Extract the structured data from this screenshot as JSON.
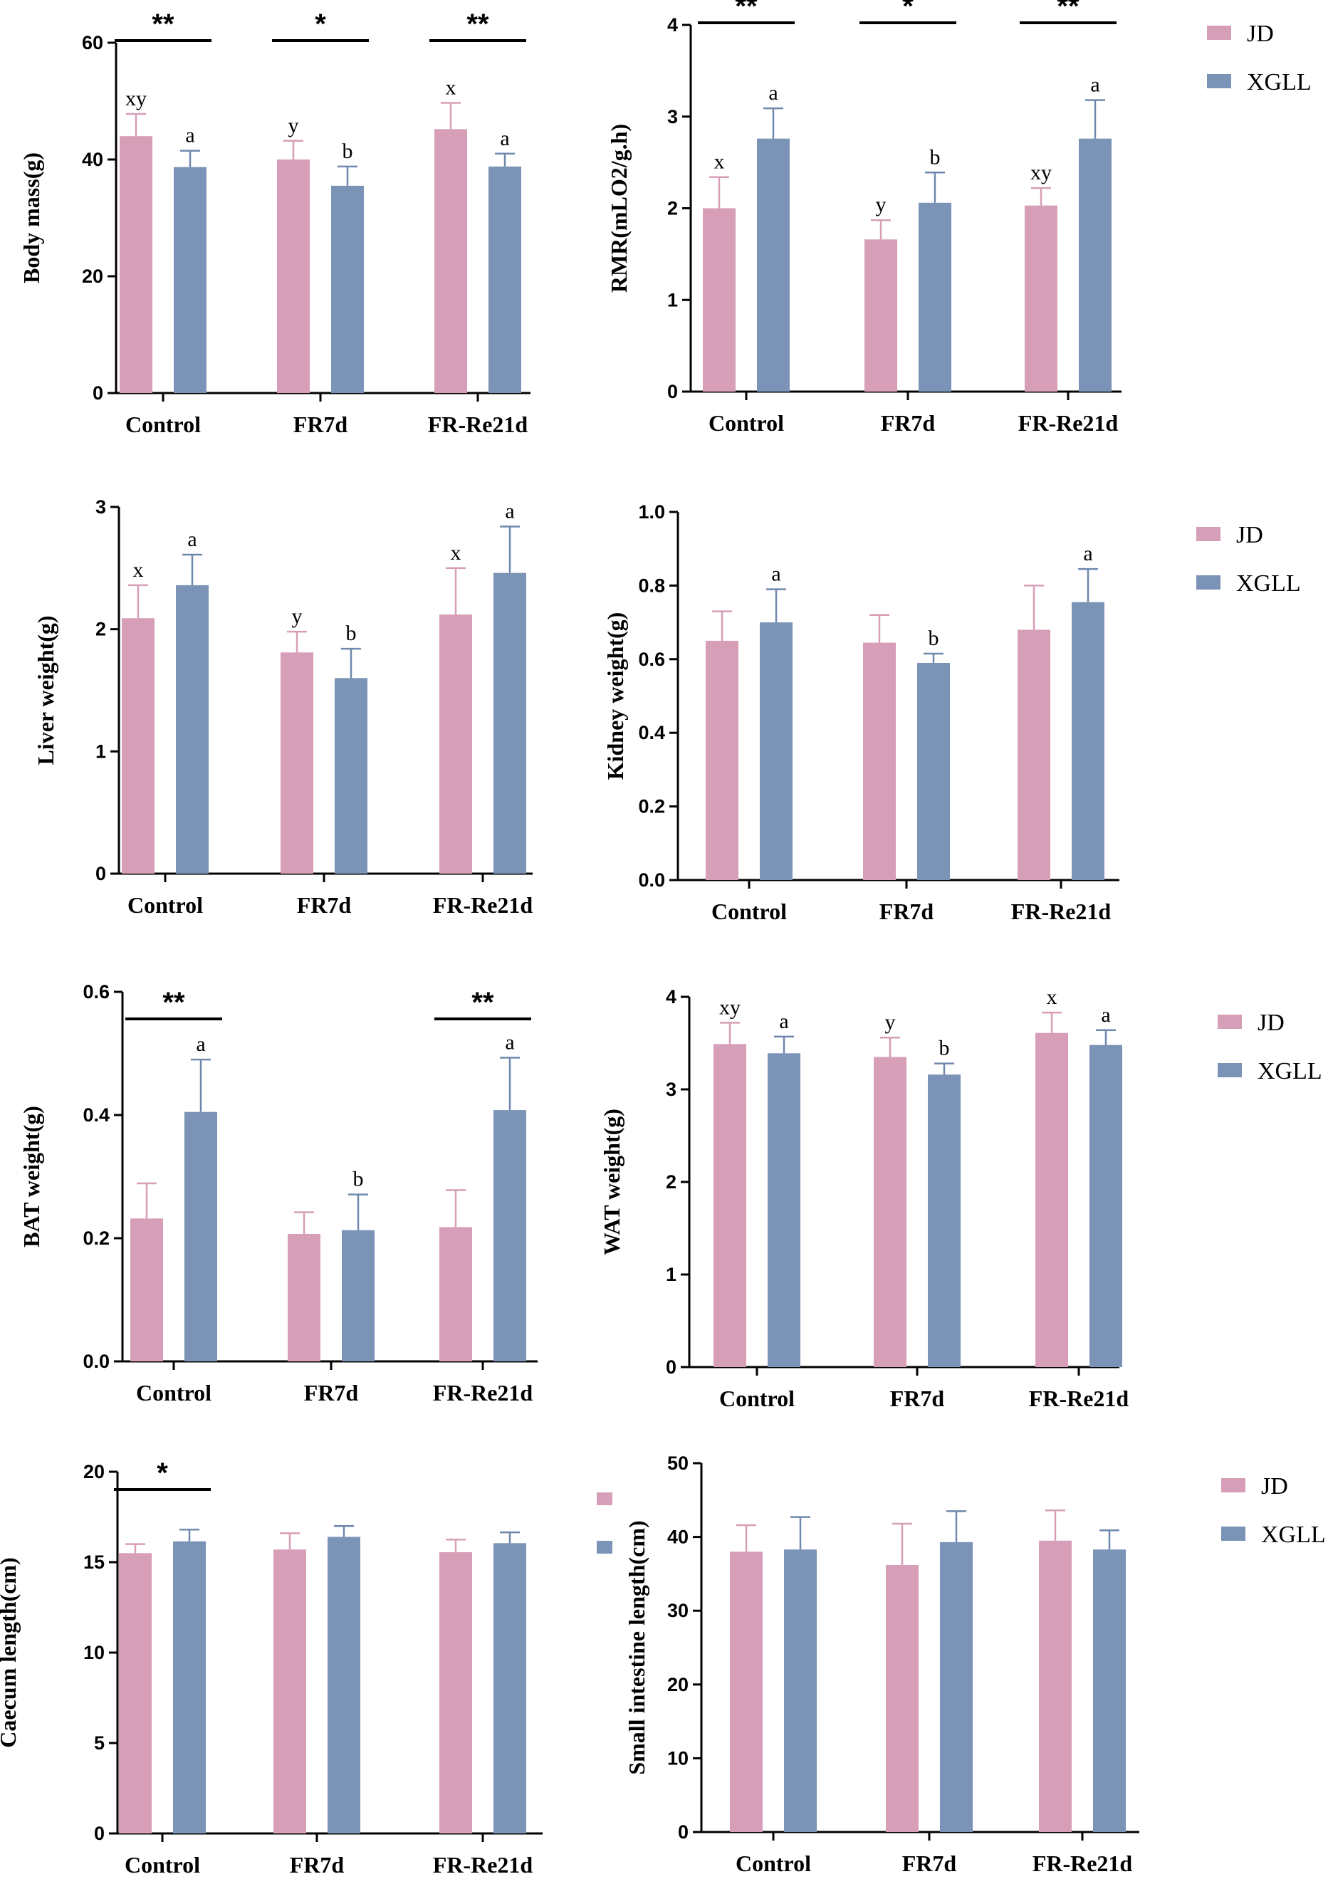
{
  "colors": {
    "JD": "#d79eb7",
    "XGLL": "#7b93b6",
    "JD_err": "#d79eb7",
    "XGLL_err": "#6f88ad"
  },
  "legend_items": [
    "JD",
    "XGLL"
  ],
  "chart_data": [
    {
      "type": "bar",
      "ylabel": "Body mass(g)",
      "categories": [
        "Control",
        "FR7d",
        "FR-Re21d"
      ],
      "ylim": [
        0,
        60
      ],
      "yticks": [
        "0",
        "20",
        "40",
        "60"
      ],
      "series": [
        {
          "name": "JD",
          "values": [
            44.0,
            40.0,
            45.2
          ],
          "errors": [
            3.8,
            3.2,
            4.5
          ],
          "letters": [
            "xy",
            "y",
            "x"
          ]
        },
        {
          "name": "XGLL",
          "values": [
            38.7,
            35.5,
            38.8
          ],
          "errors": [
            2.8,
            3.3,
            2.2
          ],
          "letters": [
            "a",
            "b",
            "a"
          ]
        }
      ],
      "significance": [
        {
          "category": "Control",
          "label": "**"
        },
        {
          "category": "FR7d",
          "label": "*"
        },
        {
          "category": "FR-Re21d",
          "label": "**"
        }
      ],
      "legend": true
    },
    {
      "type": "bar",
      "ylabel": "RMR(mLO2/g.h)",
      "categories": [
        "Control",
        "FR7d",
        "FR-Re21d"
      ],
      "ylim": [
        0,
        4
      ],
      "yticks": [
        "0",
        "1",
        "2",
        "3",
        "4"
      ],
      "series": [
        {
          "name": "JD",
          "values": [
            2.0,
            1.66,
            2.03
          ],
          "errors": [
            0.34,
            0.21,
            0.19
          ],
          "letters": [
            "x",
            "y",
            "xy"
          ]
        },
        {
          "name": "XGLL",
          "values": [
            2.76,
            2.06,
            2.76
          ],
          "errors": [
            0.33,
            0.33,
            0.42
          ],
          "letters": [
            "a",
            "b",
            "a"
          ]
        }
      ],
      "significance": [
        {
          "category": "Control",
          "label": "**"
        },
        {
          "category": "FR7d",
          "label": "*"
        },
        {
          "category": "FR-Re21d",
          "label": "**"
        }
      ],
      "legend": false
    },
    {
      "type": "bar",
      "ylabel": "Liver weight(g)",
      "categories": [
        "Control",
        "FR7d",
        "FR-Re21d"
      ],
      "ylim": [
        0,
        3
      ],
      "yticks": [
        "0",
        "1",
        "2",
        "3"
      ],
      "series": [
        {
          "name": "JD",
          "values": [
            2.09,
            1.81,
            2.12
          ],
          "errors": [
            0.27,
            0.17,
            0.38
          ],
          "letters": [
            "x",
            "y",
            "x"
          ]
        },
        {
          "name": "XGLL",
          "values": [
            2.36,
            1.6,
            2.46
          ],
          "errors": [
            0.25,
            0.24,
            0.38
          ],
          "letters": [
            "a",
            "b",
            "a"
          ]
        }
      ],
      "significance": [],
      "legend": false
    },
    {
      "type": "bar",
      "ylabel": "Kidney weight(g)",
      "categories": [
        "Control",
        "FR7d",
        "FR-Re21d"
      ],
      "ylim": [
        0,
        1.0
      ],
      "yticks": [
        "0.0",
        "0.2",
        "0.4",
        "0.6",
        "0.8",
        "1.0"
      ],
      "series": [
        {
          "name": "JD",
          "values": [
            0.65,
            0.645,
            0.68
          ],
          "errors": [
            0.08,
            0.075,
            0.12
          ],
          "letters": [
            "",
            "",
            ""
          ]
        },
        {
          "name": "XGLL",
          "values": [
            0.7,
            0.59,
            0.755
          ],
          "errors": [
            0.09,
            0.025,
            0.09
          ],
          "letters": [
            "a",
            "b",
            "a"
          ]
        }
      ],
      "significance": [],
      "legend": true
    },
    {
      "type": "bar",
      "ylabel": "BAT weight(g)",
      "categories": [
        "Control",
        "FR7d",
        "FR-Re21d"
      ],
      "ylim": [
        0,
        0.6
      ],
      "yticks": [
        "0.0",
        "0.2",
        "0.4",
        "0.6"
      ],
      "series": [
        {
          "name": "JD",
          "values": [
            0.232,
            0.207,
            0.218
          ],
          "errors": [
            0.057,
            0.035,
            0.06
          ],
          "letters": [
            "",
            "",
            ""
          ]
        },
        {
          "name": "XGLL",
          "values": [
            0.405,
            0.213,
            0.408
          ],
          "errors": [
            0.085,
            0.058,
            0.085
          ],
          "letters": [
            "a",
            "b",
            "a"
          ]
        }
      ],
      "significance": [
        {
          "category": "Control",
          "label": "**"
        },
        {
          "category": "FR-Re21d",
          "label": "**"
        }
      ],
      "legend": false
    },
    {
      "type": "bar",
      "ylabel": "WAT weight(g)",
      "categories": [
        "Control",
        "FR7d",
        "FR-Re21d"
      ],
      "ylim": [
        0,
        4
      ],
      "yticks": [
        "0",
        "1",
        "2",
        "3",
        "4"
      ],
      "series": [
        {
          "name": "JD",
          "values": [
            3.49,
            3.35,
            3.61
          ],
          "errors": [
            0.23,
            0.21,
            0.22
          ],
          "letters": [
            "xy",
            "y",
            "x"
          ]
        },
        {
          "name": "XGLL",
          "values": [
            3.39,
            3.16,
            3.48
          ],
          "errors": [
            0.18,
            0.12,
            0.16
          ],
          "letters": [
            "a",
            "b",
            "a"
          ]
        }
      ],
      "significance": [],
      "legend": true
    },
    {
      "type": "bar",
      "ylabel": "Caecum length(cm)",
      "categories": [
        "Control",
        "FR7d",
        "FR-Re21d"
      ],
      "ylim": [
        0,
        20
      ],
      "yticks": [
        "0",
        "5",
        "10",
        "15",
        "20"
      ],
      "series": [
        {
          "name": "JD",
          "values": [
            15.5,
            15.7,
            15.55
          ],
          "errors": [
            0.5,
            0.9,
            0.7
          ],
          "letters": [
            "",
            "",
            ""
          ]
        },
        {
          "name": "XGLL",
          "values": [
            16.15,
            16.4,
            16.05
          ],
          "errors": [
            0.65,
            0.6,
            0.6
          ],
          "letters": [
            "",
            "",
            ""
          ]
        }
      ],
      "significance": [
        {
          "category": "Control",
          "label": "*"
        }
      ],
      "legend": false,
      "legend_swatches_only": true
    },
    {
      "type": "bar",
      "ylabel": "Small intestine length(cm)",
      "categories": [
        "Control",
        "FR7d",
        "FR-Re21d"
      ],
      "ylim": [
        0,
        50
      ],
      "yticks": [
        "0",
        "10",
        "20",
        "30",
        "40",
        "50"
      ],
      "series": [
        {
          "name": "JD",
          "values": [
            38.0,
            36.2,
            39.5
          ],
          "errors": [
            3.6,
            5.6,
            4.1
          ],
          "letters": [
            "",
            "",
            ""
          ]
        },
        {
          "name": "XGLL",
          "values": [
            38.3,
            39.3,
            38.3
          ],
          "errors": [
            4.4,
            4.2,
            2.6
          ],
          "letters": [
            "",
            "",
            ""
          ]
        }
      ],
      "significance": [],
      "legend": true
    }
  ]
}
